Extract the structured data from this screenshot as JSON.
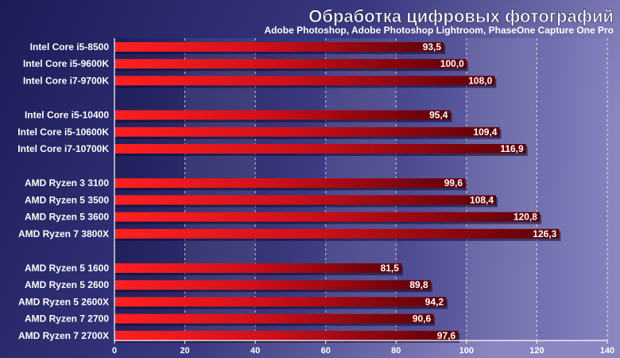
{
  "chart_data": {
    "type": "bar",
    "orientation": "horizontal",
    "title": "Обработка цифровых фотографий",
    "subtitle": "Adobe Photoshop, Adobe Photoshop Lightroom, PhaseOne Capture One Pro",
    "xlabel": "",
    "ylabel": "",
    "xlim": [
      0,
      140
    ],
    "x_ticks": [
      0,
      20,
      40,
      60,
      80,
      100,
      120,
      140
    ],
    "x_tick_labels": [
      "0",
      "20",
      "40",
      "60",
      "80",
      "100",
      "120",
      "140"
    ],
    "grid": true,
    "groups": [
      {
        "categories": [
          "Intel Core i5-8500",
          "Intel Core i5-9600K",
          "Intel Core i7-9700K"
        ],
        "values": [
          93.5,
          100.0,
          108.0
        ],
        "labels": [
          "93,5",
          "100,0",
          "108,0"
        ]
      },
      {
        "categories": [
          "Intel Core i5-10400",
          "Intel Core i5-10600K",
          "Intel Core i7-10700K"
        ],
        "values": [
          95.4,
          109.4,
          116.9
        ],
        "labels": [
          "95,4",
          "109,4",
          "116,9"
        ]
      },
      {
        "categories": [
          "AMD Ryzen 3 3100",
          "AMD Ryzen 5 3500",
          "AMD Ryzen 5 3600",
          "AMD Ryzen 7 3800X"
        ],
        "values": [
          99.6,
          108.4,
          120.8,
          126.3
        ],
        "labels": [
          "99,6",
          "108,4",
          "120,8",
          "126,3"
        ]
      },
      {
        "categories": [
          "AMD Ryzen 5 1600",
          "AMD Ryzen 5 2600",
          "AMD Ryzen 5 2600X",
          "AMD Ryzen 7 2700",
          "AMD Ryzen 7 2700X"
        ],
        "values": [
          81.5,
          89.8,
          94.2,
          90.6,
          97.6
        ],
        "labels": [
          "81,5",
          "89,8",
          "94,2",
          "90,6",
          "97,6"
        ]
      }
    ],
    "colors": {
      "bar_light": "#ff2020",
      "bar_dark": "#5a0008",
      "background": "#2a2a6a",
      "plot_background_light": "#7a78b4",
      "plot_background_dark": "#1e1e5a",
      "text": "#ffffff"
    }
  }
}
